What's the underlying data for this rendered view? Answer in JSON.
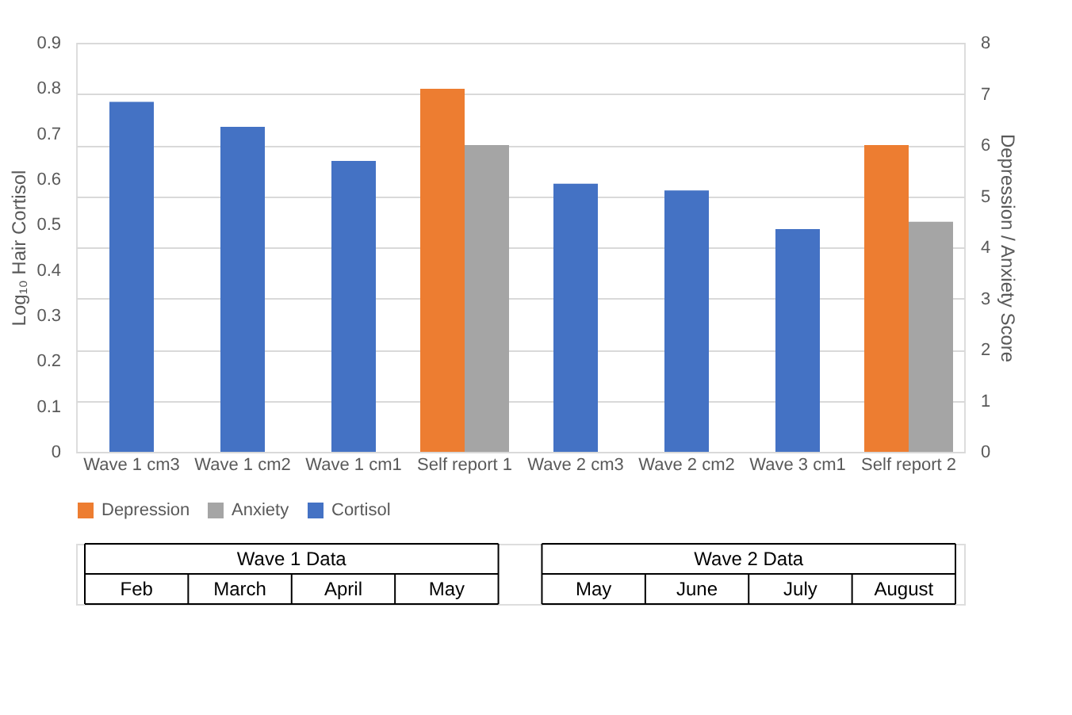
{
  "chart_data": {
    "type": "bar",
    "categories": [
      "Wave 1 cm3",
      "Wave 1 cm2",
      "Wave 1 cm1",
      "Self report 1",
      "Wave 2 cm3",
      "Wave 2 cm2",
      "Wave 3 cm1",
      "Self report 2"
    ],
    "series": [
      {
        "name": "Depression",
        "color": "#ed7d31",
        "axis": "y2",
        "values": [
          null,
          null,
          null,
          7.1,
          null,
          null,
          null,
          6.0
        ]
      },
      {
        "name": "Anxiety",
        "color": "#a5a5a5",
        "axis": "y2",
        "values": [
          null,
          null,
          null,
          6.0,
          null,
          null,
          null,
          4.5
        ]
      },
      {
        "name": "Cortisol",
        "color": "#4472c4",
        "values": [
          0.77,
          0.715,
          0.64,
          null,
          0.59,
          0.575,
          0.49,
          null
        ]
      }
    ],
    "ylabel": "Log₁₀ Hair Cortisol",
    "y2label": "Depression / Anxiety Score",
    "ylim": [
      0,
      0.9
    ],
    "yticks": [
      0,
      0.1,
      0.2,
      0.3,
      0.4,
      0.5,
      0.6,
      0.7,
      0.8,
      0.9
    ],
    "y2lim": [
      0,
      8
    ],
    "y2ticks": [
      0,
      1,
      2,
      3,
      4,
      5,
      6,
      7,
      8
    ],
    "grid": true,
    "legend": "bottom",
    "annotations": [
      "Wave 1 Data",
      "Feb",
      "March",
      "April",
      "May",
      "Wave 2 Data",
      "May",
      "June",
      "July",
      "August"
    ]
  }
}
